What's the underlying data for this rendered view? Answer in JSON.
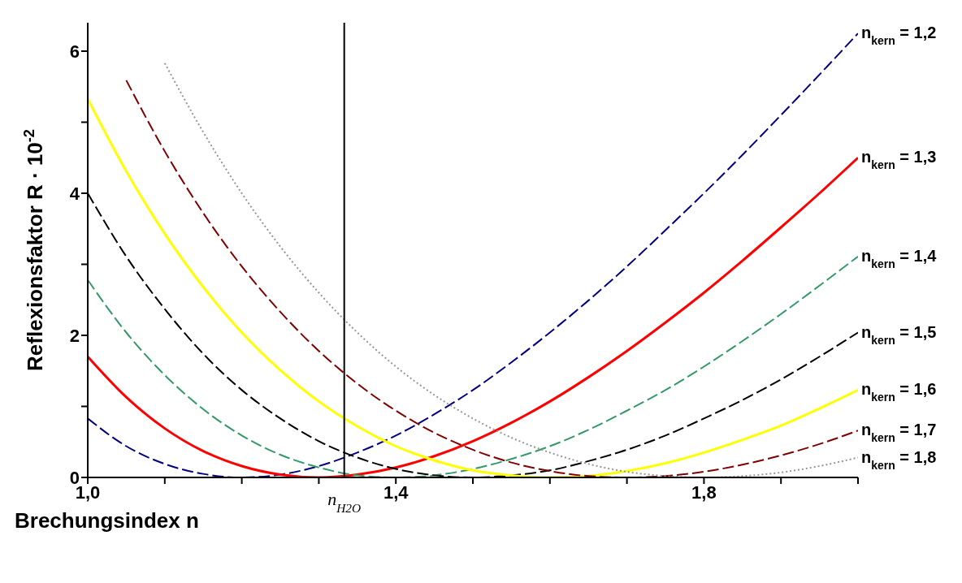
{
  "chart_data": {
    "type": "line",
    "xlabel": "Brechungsindex n",
    "ylabel": "Reflexionsfaktor R · 10$^{-2}$",
    "x": [
      1.0,
      1.05,
      1.1,
      1.15,
      1.2,
      1.25,
      1.3,
      1.35,
      1.4,
      1.45,
      1.5,
      1.55,
      1.6,
      1.65,
      1.7,
      1.75,
      1.8,
      1.85,
      1.9,
      1.95,
      2.0
    ],
    "xlim": [
      1,
      2
    ],
    "xticks": [
      {
        "value": 1,
        "label": "1,0"
      },
      {
        "value": 1.1,
        "label": null
      },
      {
        "value": 1.2,
        "label": null
      },
      {
        "value": 1.3,
        "label": null
      },
      {
        "value": 1.4,
        "label": "1,4"
      },
      {
        "value": 1.5,
        "label": null
      },
      {
        "value": 1.6,
        "label": null
      },
      {
        "value": 1.7,
        "label": null
      },
      {
        "value": 1.8,
        "label": "1,8"
      },
      {
        "value": 1.9,
        "label": null
      },
      {
        "value": 2,
        "label": null
      }
    ],
    "ylim": [
      0,
      6.4
    ],
    "yticks": [
      0,
      {
        "value": 1,
        "label": null
      },
      2,
      {
        "value": 3,
        "label": null
      },
      4,
      {
        "value": 5,
        "label": null
      },
      6
    ],
    "grid": false,
    "legend": false,
    "marker": "none",
    "series": [
      {
        "name": "n$_{kern}$= 1,2",
        "color": "#000080",
        "line_style": "dashed",
        "values": [
          0.83,
          0.44,
          0.19,
          0.05,
          0,
          0.04,
          0.16,
          0.35,
          0.59,
          0.89,
          1.23,
          1.62,
          2.04,
          2.49,
          2.97,
          3.48,
          4.0,
          4.54,
          5.1,
          5.67,
          6.25
        ]
      },
      {
        "name": "n$_{kern}$= 1,3",
        "color": "#ff0000",
        "line_style": "solid",
        "values": [
          1.7,
          1.13,
          0.69,
          0.37,
          0.16,
          0.04,
          0,
          0.04,
          0.14,
          0.3,
          0.51,
          0.77,
          1.07,
          1.41,
          1.78,
          2.18,
          2.6,
          3.05,
          3.52,
          4.0,
          4.5
        ]
      },
      {
        "name": "n$_{kern}$= 1,4",
        "color": "#339966",
        "line_style": "dashed",
        "values": [
          2.78,
          2.04,
          1.44,
          0.96,
          0.59,
          0.32,
          0.14,
          0.03,
          0,
          0.03,
          0.12,
          0.26,
          0.44,
          0.67,
          0.94,
          1.23,
          1.56,
          1.92,
          2.3,
          2.7,
          3.11
        ]
      },
      {
        "name": "n$_{kern}$= 1,5",
        "color": "#000000",
        "line_style": "dashed",
        "values": [
          4.0,
          3.11,
          2.37,
          1.74,
          1.23,
          0.83,
          0.51,
          0.28,
          0.12,
          0.03,
          0,
          0.03,
          0.1,
          0.23,
          0.39,
          0.59,
          0.83,
          1.09,
          1.38,
          1.7,
          2.04
        ]
      },
      {
        "name": "n$_{kern}$= 1,6",
        "color": "#ffff00",
        "line_style": "solid",
        "values": [
          5.33,
          4.31,
          3.43,
          2.68,
          2.04,
          1.51,
          1.07,
          0.72,
          0.44,
          0.24,
          0.1,
          0.03,
          0,
          0.02,
          0.09,
          0.2,
          0.35,
          0.53,
          0.73,
          0.97,
          1.23
        ]
      },
      {
        "name": "n$_{kern}$= 1,7",
        "color": "#800000",
        "line_style": "dashed",
        "values": [
          null,
          5.59,
          4.59,
          3.72,
          2.97,
          2.33,
          1.78,
          1.32,
          0.94,
          0.63,
          0.39,
          0.21,
          0.09,
          0.02,
          0,
          0.02,
          0.08,
          0.18,
          0.31,
          0.47,
          0.66
        ]
      },
      {
        "name": "n$_{kern}$= 1,8",
        "color": "#969696",
        "line_style": "dotted",
        "values": [
          null,
          null,
          5.83,
          4.86,
          4.0,
          3.25,
          2.6,
          2.04,
          1.56,
          1.16,
          0.83,
          0.56,
          0.35,
          0.19,
          0.08,
          0.02,
          0,
          0.02,
          0.07,
          0.16,
          0.28
        ]
      }
    ],
    "ref_lines": [
      {
        "axis": "x",
        "value": 1.333,
        "label": "n$_{H2O}$",
        "color": "#000000"
      }
    ]
  }
}
